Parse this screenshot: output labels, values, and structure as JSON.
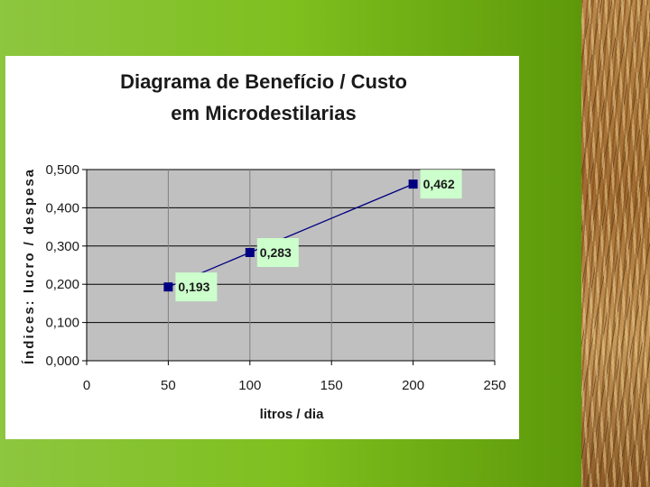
{
  "chart_data": {
    "type": "line",
    "title": [
      "Diagrama de Benefício / Custo",
      "em Microdestilarias"
    ],
    "xlabel": "litros / dia",
    "ylabel": "Índices: lucro / despesa",
    "xlim": [
      0,
      250
    ],
    "ylim": [
      0,
      0.5
    ],
    "x_ticks": [
      "0",
      "50",
      "100",
      "150",
      "200",
      "250"
    ],
    "y_ticks": [
      "0,000",
      "0,100",
      "0,200",
      "0,300",
      "0,400",
      "0,500"
    ],
    "series": [
      {
        "x": [
          50,
          100,
          200
        ],
        "values": [
          0.193,
          0.283,
          0.462
        ],
        "labels": [
          "0,193",
          "0,283",
          "0,462"
        ]
      }
    ],
    "grid": true,
    "legend": "none",
    "colors": {
      "plot_background": "#c0c0c0",
      "line": "#000080",
      "marker": "#000080",
      "label_background": "#ccffcc"
    }
  }
}
